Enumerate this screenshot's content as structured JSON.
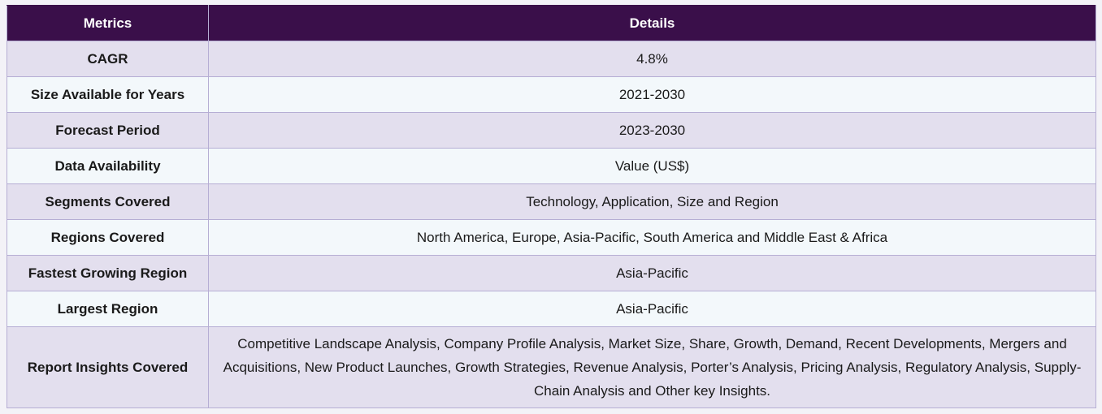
{
  "table": {
    "headers": [
      "Metrics",
      "Details"
    ],
    "rows": [
      {
        "metric": "CAGR",
        "details": "4.8%"
      },
      {
        "metric": "Size Available for Years",
        "details": "2021-2030"
      },
      {
        "metric": "Forecast Period",
        "details": "2023-2030"
      },
      {
        "metric": "Data Availability",
        "details": "Value (US$)"
      },
      {
        "metric": "Segments Covered",
        "details": "Technology, Application, Size and Region"
      },
      {
        "metric": "Regions Covered",
        "details": "North America, Europe, Asia-Pacific, South America and Middle East & Africa"
      },
      {
        "metric": "Fastest Growing Region",
        "details": "Asia-Pacific"
      },
      {
        "metric": "Largest Region",
        "details": "Asia-Pacific"
      },
      {
        "metric": "Report Insights Covered",
        "details": "Competitive Landscape Analysis, Company Profile Analysis, Market Size, Share, Growth, Demand, Recent Developments, Mergers and Acquisitions, New Product Launches, Growth Strategies, Revenue Analysis, Porter’s Analysis, Pricing Analysis, Regulatory Analysis, Supply-Chain Analysis and Other key Insights."
      }
    ]
  },
  "colors": {
    "header_bg": "#3a0f4a",
    "row_odd_bg": "#e3dfee",
    "row_even_bg": "#f3f8fb",
    "border": "#b6aed4"
  }
}
